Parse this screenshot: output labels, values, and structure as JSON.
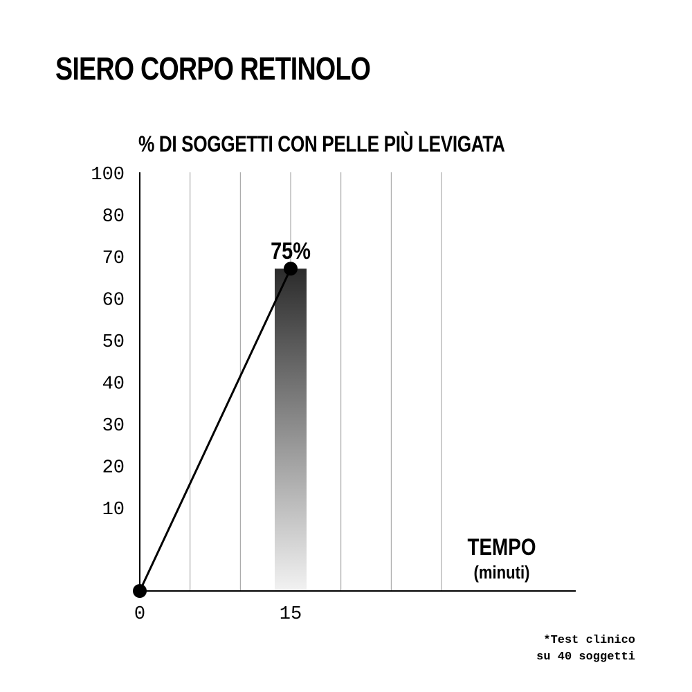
{
  "chart_data": {
    "type": "bar",
    "title": "SIERO CORPO RETINOLO",
    "subtitle": "% DI SOGGETTI CON PELLE PIÙ LEVIGATA",
    "xlabel": "TEMPO",
    "xlabel_unit": "(minuti)",
    "ylabel": "",
    "y_ticks": [
      "100",
      "80",
      "70",
      "60",
      "50",
      "40",
      "30",
      "20",
      "10"
    ],
    "x_ticks": [
      "0",
      "15"
    ],
    "ylim": [
      0,
      100
    ],
    "xlim": [
      0,
      45
    ],
    "bar": {
      "x": 15,
      "value": 75,
      "label": "75%"
    },
    "line": {
      "x": [
        0,
        15
      ],
      "y": [
        0,
        75
      ]
    },
    "grid": "vertical",
    "colors": {
      "bar_top": "#2b2b2b",
      "bar_bottom": "#f2f2f2",
      "line": "#000000",
      "grid": "#9a9a9a"
    }
  },
  "footnote": {
    "line1": "*Test clinico",
    "line2": "su 40 soggetti"
  }
}
